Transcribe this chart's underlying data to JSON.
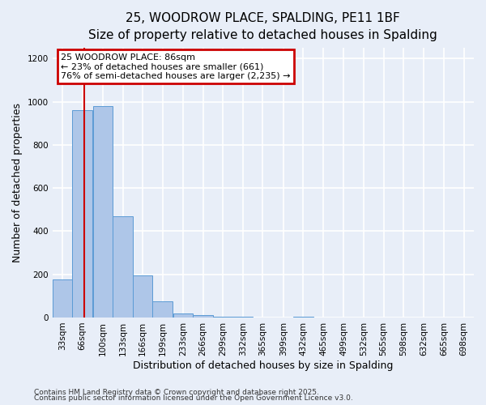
{
  "title_line1": "25, WOODROW PLACE, SPALDING, PE11 1BF",
  "title_line2": "Size of property relative to detached houses in Spalding",
  "xlabel": "Distribution of detached houses by size in Spalding",
  "ylabel": "Number of detached properties",
  "footnote1": "Contains HM Land Registry data © Crown copyright and database right 2025.",
  "footnote2": "Contains public sector information licensed under the Open Government Licence v3.0.",
  "annotation_line1": "25 WOODROW PLACE: 86sqm",
  "annotation_line2": "← 23% of detached houses are smaller (661)",
  "annotation_line3": "76% of semi-detached houses are larger (2,235) →",
  "bar_edges": [
    33,
    66,
    100,
    133,
    166,
    199,
    233,
    266,
    299,
    332,
    365,
    399,
    432,
    465,
    499,
    532,
    565,
    598,
    632,
    665,
    698
  ],
  "bar_heights": [
    178,
    960,
    980,
    470,
    195,
    75,
    20,
    10,
    5,
    2,
    0,
    0,
    5,
    0,
    0,
    0,
    0,
    0,
    0,
    0
  ],
  "bar_color": "#aec6e8",
  "bar_edge_color": "#5b9bd5",
  "red_line_x": 86,
  "ylim": [
    0,
    1250
  ],
  "yticks": [
    0,
    200,
    400,
    600,
    800,
    1000,
    1200
  ],
  "bg_color": "#e8eef8",
  "grid_color": "#ffffff",
  "annotation_box_color": "#ffffff",
  "annotation_box_edge": "#cc0000",
  "red_line_color": "#cc0000",
  "title_fontsize": 11,
  "subtitle_fontsize": 10,
  "axis_label_fontsize": 9,
  "tick_fontsize": 7.5,
  "annotation_fontsize": 8,
  "footnote_fontsize": 6.5
}
